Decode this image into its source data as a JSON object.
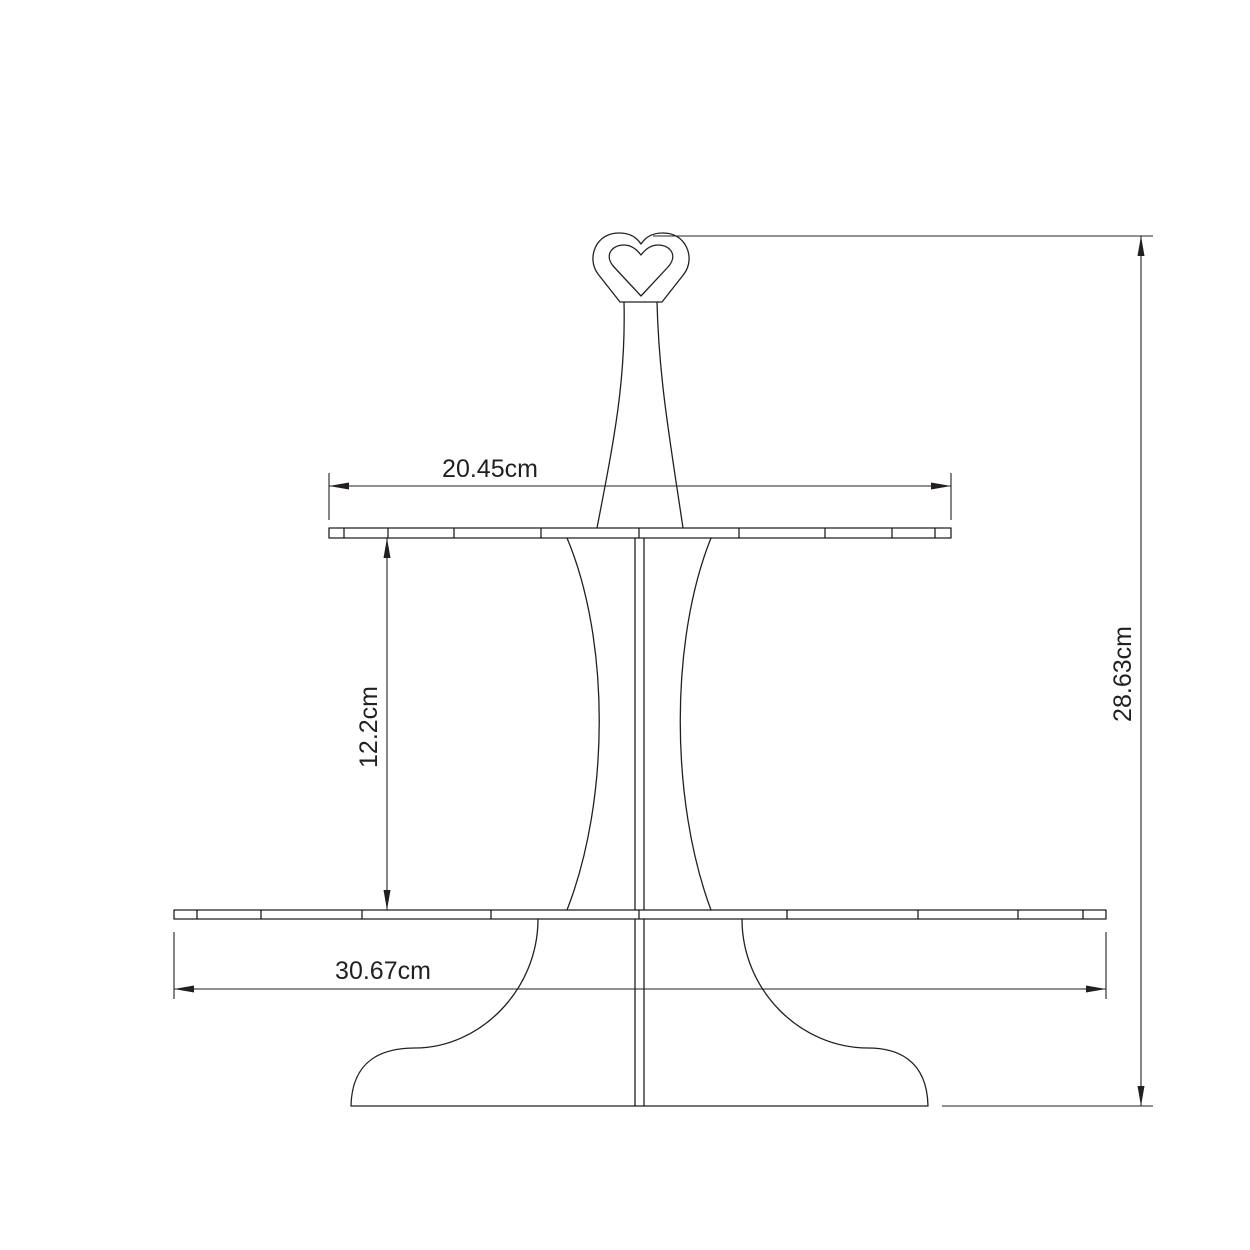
{
  "drawing": {
    "dimensions": {
      "top_tier_width": "20.45cm",
      "tier_spacing": "12.2cm",
      "bottom_tier_width": "30.67cm",
      "total_height": "28.63cm"
    },
    "colors": {
      "line": "#231f20",
      "background": "#ffffff"
    }
  }
}
